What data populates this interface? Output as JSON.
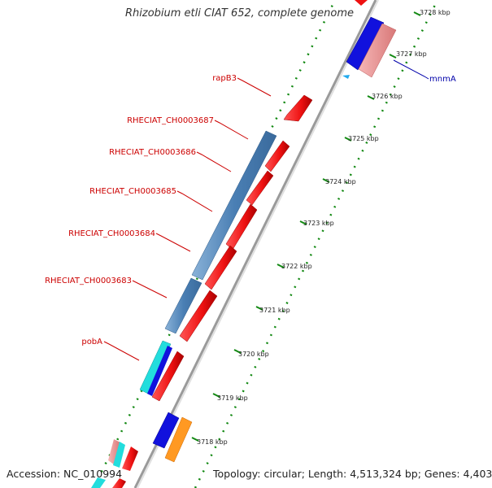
{
  "title": "Rhizobium etli CIAT 652, complete genome",
  "footer": {
    "accession": "Accession: NC_010994",
    "summary": "Topology: circular; Length: 4,513,324 bp; Genes: 4,403"
  },
  "colors": {
    "backbone": "#9a9a9a",
    "tick": "#118811",
    "forward_gene": "#ee1111",
    "reverse_gene": "#1111dd",
    "gene_label": "#cc0000",
    "secondary_label": "#0000aa"
  },
  "gene_labels": [
    {
      "id": "rapB3",
      "text": "rapB3"
    },
    {
      "id": "RHECIAT_CH0003687",
      "text": "RHECIAT_CH0003687"
    },
    {
      "id": "RHECIAT_CH0003686",
      "text": "RHECIAT_CH0003686"
    },
    {
      "id": "RHECIAT_CH0003685",
      "text": "RHECIAT_CH0003685"
    },
    {
      "id": "RHECIAT_CH0003684",
      "text": "RHECIAT_CH0003684"
    },
    {
      "id": "RHECIAT_CH0003683",
      "text": "RHECIAT_CH0003683"
    },
    {
      "id": "pobA",
      "text": "pobA"
    },
    {
      "id": "mnmA",
      "text": "mnmA"
    }
  ],
  "kbp_labels": [
    "3728 kbp",
    "3727 kbp",
    "3726 kbp",
    "3725 kbp",
    "3724 kbp",
    "3723 kbp",
    "3722 kbp",
    "3721 kbp",
    "3720 kbp",
    "3719 kbp",
    "3718 kbp"
  ]
}
